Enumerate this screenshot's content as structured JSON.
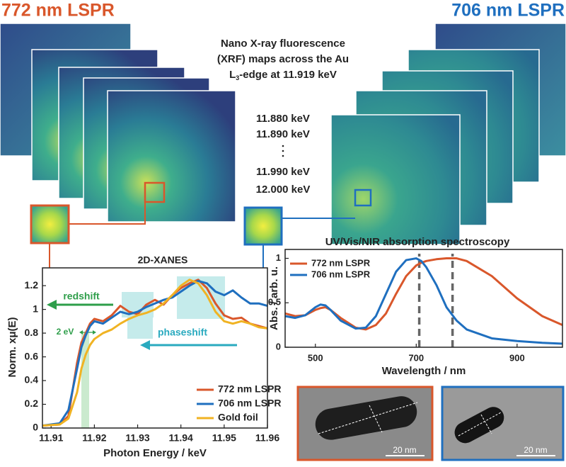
{
  "header": {
    "left_title": "772 nm LSPR",
    "right_title": "706 nm LSPR"
  },
  "xrf": {
    "line1": "Nano  X-ray  fluorescence",
    "line2": "(XRF) maps across the Au",
    "line3_pre": "L",
    "line3_sub": "3",
    "line3_post": "-edge at 11.919 keV",
    "energies": [
      "11.880 keV",
      "11.890 keV",
      "11.990 keV",
      "12.000 keV"
    ]
  },
  "tem": [
    {
      "scale": "20 nm"
    },
    {
      "scale": "20 nm"
    }
  ],
  "chart_data": [
    {
      "type": "line",
      "title": "2D-XANES",
      "xlabel": "Photon Energy / keV",
      "ylabel": "Norm. xμ(E)",
      "annotations": {
        "redshift": "redshift",
        "phaseshift": "phaseshift",
        "gap": "2 eV"
      },
      "x": [
        11.908,
        11.912,
        11.914,
        11.916,
        11.917,
        11.918,
        11.919,
        11.92,
        11.922,
        11.924,
        11.926,
        11.928,
        11.93,
        11.932,
        11.934,
        11.936,
        11.938,
        11.94,
        11.942,
        11.944,
        11.946,
        11.948,
        11.95,
        11.952,
        11.954,
        11.956,
        11.958,
        11.96
      ],
      "series": [
        {
          "name": "772 nm LSPR",
          "color": "#d9572b",
          "values": [
            0.02,
            0.03,
            0.1,
            0.55,
            0.72,
            0.8,
            0.88,
            0.92,
            0.9,
            0.95,
            1.03,
            0.98,
            0.96,
            1.04,
            1.08,
            1.04,
            1.12,
            1.18,
            1.22,
            1.25,
            1.18,
            1.05,
            0.95,
            0.92,
            0.93,
            0.88,
            0.86,
            0.84
          ]
        },
        {
          "name": "706 nm LSPR",
          "color": "#1f6fbf",
          "values": [
            0.02,
            0.04,
            0.15,
            0.5,
            0.68,
            0.78,
            0.86,
            0.9,
            0.88,
            0.93,
            0.98,
            0.96,
            0.98,
            1.02,
            1.05,
            1.08,
            1.1,
            1.15,
            1.2,
            1.24,
            1.22,
            1.15,
            1.12,
            1.16,
            1.1,
            1.05,
            1.05,
            1.03
          ]
        },
        {
          "name": "Gold foil",
          "color": "#f0b323",
          "values": [
            0.02,
            0.03,
            0.08,
            0.3,
            0.5,
            0.62,
            0.7,
            0.75,
            0.8,
            0.83,
            0.88,
            0.92,
            0.95,
            0.97,
            1.0,
            1.05,
            1.12,
            1.2,
            1.25,
            1.22,
            1.12,
            0.98,
            0.9,
            0.88,
            0.9,
            0.88,
            0.85,
            0.84
          ]
        }
      ],
      "xlim": [
        11.908,
        11.96
      ],
      "ylim": [
        0,
        1.35
      ],
      "xticks": [
        11.91,
        11.92,
        11.93,
        11.94,
        11.95,
        11.96
      ],
      "yticks": [
        0,
        0.2,
        0.4,
        0.6,
        0.8,
        1,
        1.2
      ],
      "legend": "lower right"
    },
    {
      "type": "line",
      "title": "UV/Vis/NIR absorption spectroscopy",
      "xlabel": "Wavelength / nm",
      "ylabel": "Abs. / arb. u.",
      "x": [
        440,
        460,
        480,
        500,
        510,
        520,
        530,
        550,
        580,
        600,
        620,
        640,
        660,
        680,
        700,
        710,
        720,
        740,
        760,
        780,
        800,
        850,
        900,
        950,
        990
      ],
      "series": [
        {
          "name": "772 nm LSPR",
          "color": "#d9572b",
          "values": [
            0.38,
            0.35,
            0.36,
            0.42,
            0.44,
            0.45,
            0.42,
            0.33,
            0.22,
            0.2,
            0.25,
            0.38,
            0.6,
            0.8,
            0.92,
            0.95,
            0.97,
            0.99,
            1.0,
            1.0,
            0.97,
            0.8,
            0.55,
            0.35,
            0.25
          ]
        },
        {
          "name": "706 nm LSPR",
          "color": "#1f6fbf",
          "values": [
            0.35,
            0.33,
            0.36,
            0.45,
            0.48,
            0.47,
            0.42,
            0.3,
            0.21,
            0.22,
            0.35,
            0.6,
            0.85,
            0.98,
            1.0,
            0.97,
            0.9,
            0.7,
            0.45,
            0.3,
            0.2,
            0.1,
            0.07,
            0.05,
            0.04
          ]
        }
      ],
      "vlines": [
        706,
        772
      ],
      "xlim": [
        440,
        990
      ],
      "ylim": [
        0,
        1.1
      ],
      "xticks": [
        500,
        700,
        900
      ],
      "yticks": [
        0,
        0.5,
        1
      ],
      "legend": "upper left"
    }
  ]
}
